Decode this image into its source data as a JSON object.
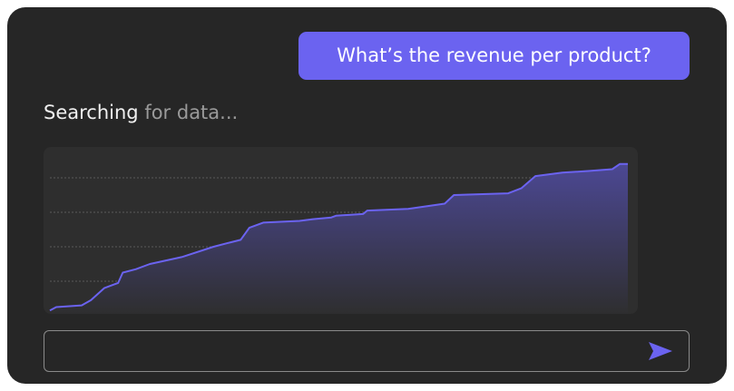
{
  "message": {
    "text": "What’s the revenue per product?"
  },
  "status": {
    "lead": "Searching",
    "rest": "for data..."
  },
  "chart_data": {
    "type": "area",
    "color": "#6b63f0",
    "grid": true,
    "x": [
      0,
      1.1,
      5.5,
      7.1,
      9.4,
      11.8,
      12.6,
      14.9,
      17.3,
      22.8,
      28.3,
      30.6,
      33,
      34.5,
      36.9,
      43.2,
      45.5,
      48.7,
      49.5,
      54.2,
      54.9,
      62,
      68.3,
      69.9,
      79.3,
      81.6,
      84,
      88.7,
      93.4,
      97.3,
      98.6,
      100
    ],
    "values": [
      3,
      5,
      6,
      9,
      16,
      19,
      25,
      27,
      30,
      34,
      40,
      42,
      44,
      51,
      54,
      55,
      56,
      57,
      58,
      59,
      61,
      62,
      65,
      70,
      71,
      74,
      81,
      83,
      84,
      85,
      88,
      88
    ],
    "xlim": [
      0,
      100
    ],
    "ylim": [
      0,
      100
    ],
    "yticks": [
      20,
      40,
      60,
      80
    ]
  }
}
